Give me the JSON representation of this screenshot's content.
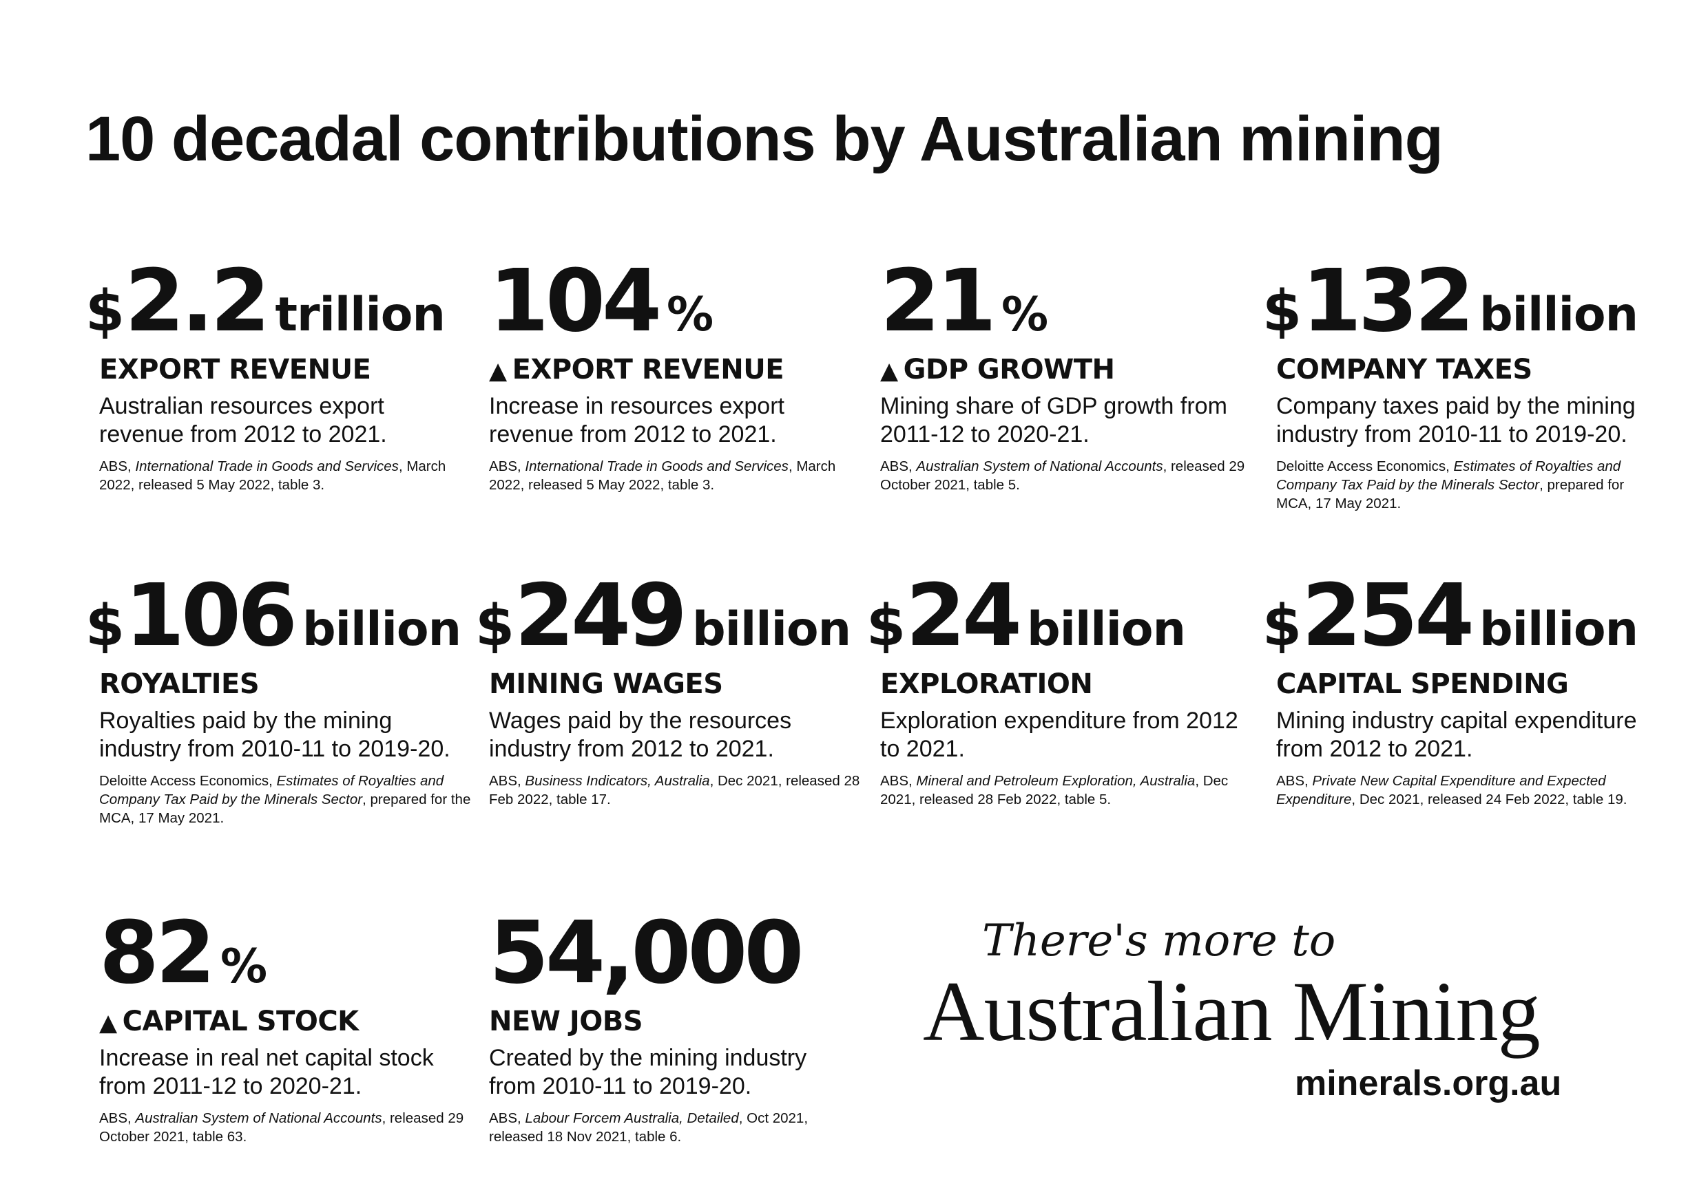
{
  "title": "10 decadal contributions by Australian mining",
  "stats": [
    {
      "prefix": "$",
      "value": "2.2",
      "unit": "trillion",
      "arrow": "",
      "label": "EXPORT REVENUE",
      "description": "Australian resources export revenue from 2012 to 2021.",
      "source_pre": "ABS, ",
      "source_title": "International Trade in Goods and Services",
      "source_post": ", March 2022, released 5 May 2022, table 3."
    },
    {
      "prefix": "",
      "value": "104",
      "unit": "%",
      "arrow": "▲",
      "label": "EXPORT REVENUE",
      "description": "Increase in resources export revenue from 2012 to 2021.",
      "source_pre": "ABS, ",
      "source_title": "International Trade in Goods and Services",
      "source_post": ", March 2022, released 5 May 2022, table 3."
    },
    {
      "prefix": "",
      "value": "21",
      "unit": "%",
      "arrow": "▲",
      "label": "GDP GROWTH",
      "description": "Mining share of GDP growth from 2011-12 to 2020-21.",
      "source_pre": "ABS, ",
      "source_title": "Australian System of National Accounts",
      "source_post": ", released 29 October 2021, table 5."
    },
    {
      "prefix": "$",
      "value": "132",
      "unit": "billion",
      "arrow": "",
      "label": "COMPANY TAXES",
      "description": "Company taxes paid by the mining industry from 2010-11 to 2019-20.",
      "source_pre": "Deloitte Access Economics, ",
      "source_title": "Estimates of Royalties and Company Tax Paid by the Minerals Sector",
      "source_post": ", prepared for MCA, 17 May 2021."
    },
    {
      "prefix": "$",
      "value": "106",
      "unit": "billion",
      "arrow": "",
      "label": "ROYALTIES",
      "description": "Royalties paid by the mining industry from 2010-11 to 2019-20.",
      "source_pre": "Deloitte Access Economics, ",
      "source_title": "Estimates of Royalties and Company Tax Paid by the Minerals Sector",
      "source_post": ", prepared for the MCA, 17 May 2021."
    },
    {
      "prefix": "$",
      "value": "249",
      "unit": "billion",
      "arrow": "",
      "label": "MINING WAGES",
      "description": "Wages paid by the resources industry from 2012 to 2021.",
      "source_pre": "ABS, ",
      "source_title": "Business Indicators, Australia",
      "source_post": ", Dec 2021, released 28 Feb 2022, table 17."
    },
    {
      "prefix": "$",
      "value": "24",
      "unit": "billion",
      "arrow": "",
      "label": "EXPLORATION",
      "description": "Exploration expenditure from 2012 to 2021.",
      "source_pre": "ABS, ",
      "source_title": "Mineral and Petroleum Exploration, Australia",
      "source_post": ", Dec 2021, released 28 Feb 2022, table 5."
    },
    {
      "prefix": "$",
      "value": "254",
      "unit": "billion",
      "arrow": "",
      "label": "CAPITAL SPENDING",
      "description": "Mining industry capital expenditure from 2012 to 2021.",
      "source_pre": "ABS, ",
      "source_title": "Private New Capital Expenditure and Expected Expenditure",
      "source_post": ", Dec 2021, released 24 Feb 2022, table 19."
    },
    {
      "prefix": "",
      "value": "82",
      "unit": "%",
      "arrow": "▲",
      "label": "CAPITAL STOCK",
      "description": "Increase in real net capital stock from 2011-12 to 2020-21.",
      "source_pre": "ABS, ",
      "source_title": "Australian System of National Accounts",
      "source_post": ", released 29 October 2021, table 63."
    },
    {
      "prefix": "",
      "value": "54,000",
      "unit": "",
      "arrow": "",
      "label": "NEW JOBS",
      "description": "Created by the mining industry from 2010-11 to 2019-20.",
      "source_pre": "ABS, ",
      "source_title": "Labour Forcem Australia, Detailed",
      "source_post": ", Oct 2021, released 18 Nov 2021, table 6."
    }
  ],
  "brand": {
    "tagline": "There's more to",
    "wordmark": "Australian Mining",
    "url": "minerals.org.au"
  }
}
